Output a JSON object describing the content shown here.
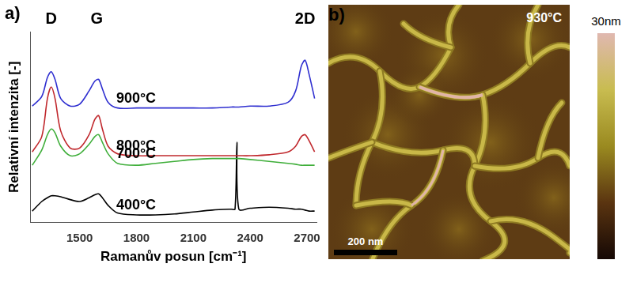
{
  "chart_data": {
    "type": "line",
    "title": "a)",
    "x_label": "Ramanův posun [cm⁻¹]",
    "y_label": "Relativní intenzita [-]",
    "x": [
      1250,
      1300,
      1330,
      1350,
      1370,
      1400,
      1450,
      1500,
      1550,
      1580,
      1600,
      1620,
      1650,
      1700,
      1800,
      1900,
      2000,
      2100,
      2200,
      2300,
      2320,
      2330,
      2340,
      2400,
      2500,
      2600,
      2640,
      2670,
      2690,
      2710,
      2740
    ],
    "series": [
      {
        "name": "900°C",
        "color": "#2f2fd0",
        "values": [
          6.1,
          6.6,
          7.6,
          7.9,
          7.5,
          6.5,
          6.1,
          6.2,
          6.9,
          7.4,
          7.5,
          7.0,
          6.3,
          6.0,
          6.0,
          6.0,
          6.0,
          6.0,
          6.0,
          6.05,
          6.05,
          6.05,
          6.05,
          6.1,
          6.1,
          6.3,
          6.9,
          8.2,
          8.5,
          7.8,
          6.5
        ]
      },
      {
        "name": "800°C",
        "color": "#c0282d",
        "values": [
          3.7,
          4.5,
          6.5,
          7.1,
          6.5,
          4.8,
          3.9,
          3.9,
          4.6,
          5.4,
          5.6,
          4.9,
          4.0,
          3.6,
          3.5,
          3.5,
          3.5,
          3.5,
          3.5,
          3.5,
          3.5,
          3.5,
          3.5,
          3.5,
          3.55,
          3.7,
          4.0,
          4.5,
          4.6,
          4.3,
          3.7
        ]
      },
      {
        "name": "700°C",
        "color": "#3fae3a",
        "values": [
          3.0,
          3.8,
          4.6,
          4.9,
          4.7,
          4.0,
          3.5,
          3.6,
          4.1,
          4.5,
          4.6,
          4.2,
          3.6,
          3.1,
          3.0,
          3.1,
          3.2,
          3.3,
          3.35,
          3.35,
          3.35,
          3.35,
          3.35,
          3.3,
          3.2,
          3.1,
          3.05,
          3.0,
          3.0,
          3.0,
          3.0
        ]
      },
      {
        "name": "400°C",
        "color": "#000000",
        "values": [
          0.6,
          1.1,
          1.3,
          1.4,
          1.4,
          1.35,
          1.2,
          1.1,
          1.3,
          1.45,
          1.5,
          1.3,
          0.9,
          0.5,
          0.4,
          0.4,
          0.45,
          0.55,
          0.65,
          0.7,
          0.7,
          4.2,
          0.7,
          0.75,
          0.8,
          0.75,
          0.7,
          0.7,
          0.65,
          0.6,
          0.6
        ]
      }
    ],
    "xlim": [
      1240,
      2750
    ],
    "xticks": [
      1500,
      1800,
      2100,
      2400,
      2700
    ],
    "ylim": [
      0,
      10
    ],
    "tick_labels": "x",
    "grid": false,
    "annotations": [
      {
        "text": "D",
        "x": 1350
      },
      {
        "text": "G",
        "x": 1590
      },
      {
        "text": "2D",
        "x": 2690
      }
    ]
  },
  "image_panel": {
    "title": "b)",
    "temperature": "930°C",
    "scale_bar": "200 nm",
    "colorbar_label": "30nm"
  }
}
